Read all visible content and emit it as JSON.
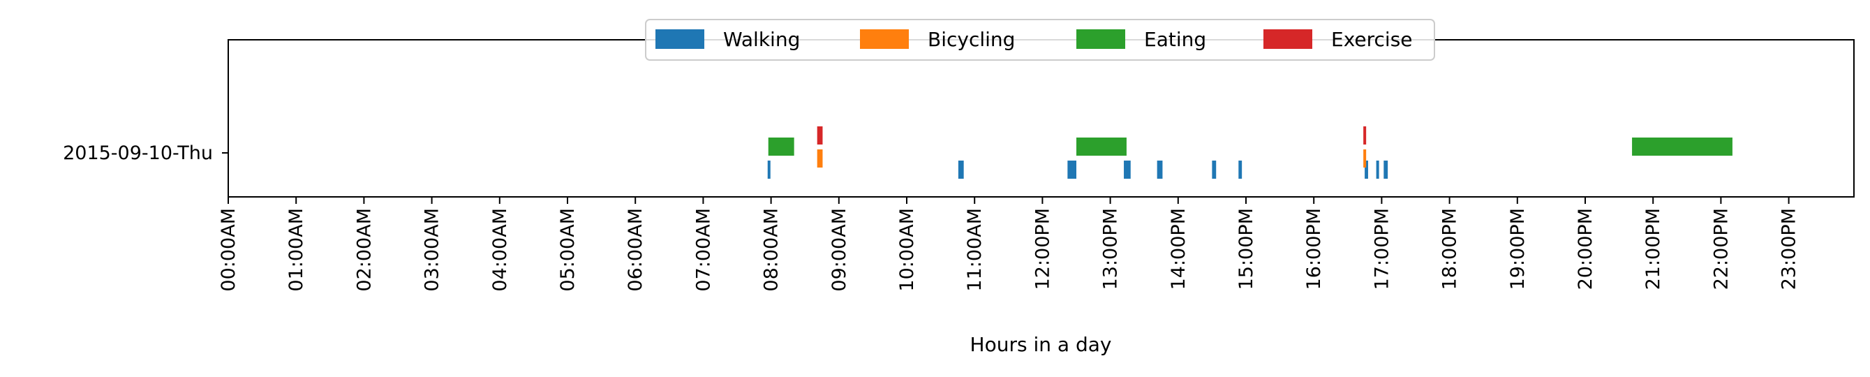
{
  "chart_data": {
    "type": "timeline",
    "title": "",
    "xlabel": "Hours in a day",
    "ylabel": "",
    "xlim": [
      0,
      24
    ],
    "row_label": "2015-09-10-Thu",
    "x_ticks": [
      "00:00AM",
      "01:00AM",
      "02:00AM",
      "03:00AM",
      "04:00AM",
      "05:00AM",
      "06:00AM",
      "07:00AM",
      "08:00AM",
      "09:00AM",
      "10:00AM",
      "11:00AM",
      "12:00PM",
      "13:00PM",
      "14:00PM",
      "15:00PM",
      "16:00PM",
      "17:00PM",
      "18:00PM",
      "19:00PM",
      "20:00PM",
      "21:00PM",
      "22:00PM",
      "23:00PM"
    ],
    "legend_position": "top-center",
    "grid": false,
    "series": [
      {
        "name": "Walking",
        "color": "#1f77b4",
        "intervals": [
          [
            7.95,
            7.99
          ],
          [
            10.76,
            10.84
          ],
          [
            12.37,
            12.5
          ],
          [
            13.2,
            13.3
          ],
          [
            13.69,
            13.77
          ],
          [
            14.5,
            14.56
          ],
          [
            14.89,
            14.94
          ],
          [
            16.75,
            16.8
          ],
          [
            16.92,
            16.96
          ],
          [
            17.03,
            17.09
          ]
        ]
      },
      {
        "name": "Bicycling",
        "color": "#ff7f0e",
        "intervals": [
          [
            8.68,
            8.76
          ],
          [
            16.73,
            16.77
          ]
        ]
      },
      {
        "name": "Eating",
        "color": "#2ca02c",
        "intervals": [
          [
            7.96,
            8.34
          ],
          [
            12.5,
            13.24
          ],
          [
            20.69,
            22.17
          ]
        ]
      },
      {
        "name": "Exercise",
        "color": "#d62728",
        "intervals": [
          [
            8.68,
            8.76
          ],
          [
            16.73,
            16.77
          ]
        ]
      }
    ]
  }
}
